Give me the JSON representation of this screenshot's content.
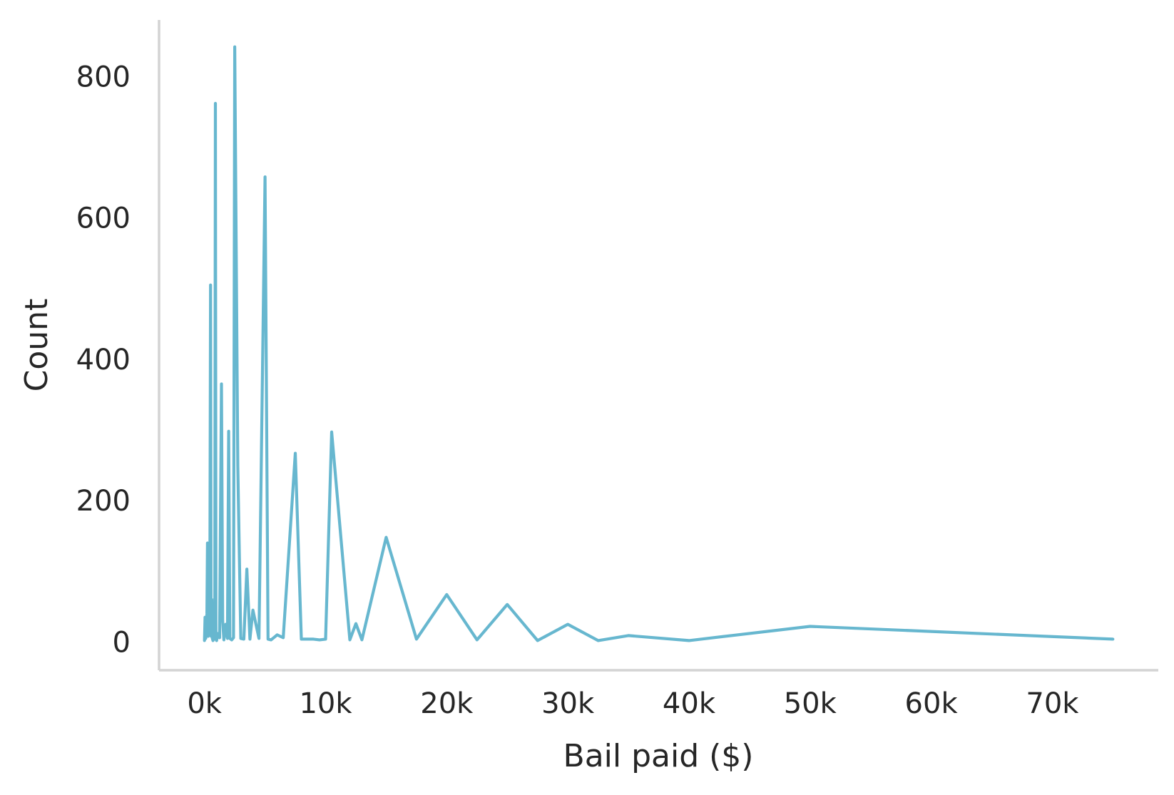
{
  "chart_data": {
    "type": "line",
    "title": "",
    "xlabel": "Bail paid ($)",
    "ylabel": "Count",
    "xlim": [
      -3750,
      78750
    ],
    "ylim": [
      -40,
      880
    ],
    "grid": false,
    "legend": "none",
    "x_ticks": [
      {
        "value": 0,
        "label": "0k"
      },
      {
        "value": 10000,
        "label": "10k"
      },
      {
        "value": 20000,
        "label": "20k"
      },
      {
        "value": 30000,
        "label": "30k"
      },
      {
        "value": 40000,
        "label": "40k"
      },
      {
        "value": 50000,
        "label": "50k"
      },
      {
        "value": 60000,
        "label": "60k"
      },
      {
        "value": 70000,
        "label": "70k"
      }
    ],
    "y_ticks": [
      {
        "value": 0,
        "label": "0"
      },
      {
        "value": 200,
        "label": "200"
      },
      {
        "value": 400,
        "label": "400"
      },
      {
        "value": 600,
        "label": "600"
      },
      {
        "value": 800,
        "label": "800"
      }
    ],
    "series": [
      {
        "color": "#67b7cf",
        "x": [
          0,
          50,
          100,
          150,
          200,
          250,
          300,
          350,
          400,
          450,
          500,
          550,
          600,
          650,
          700,
          750,
          800,
          850,
          900,
          950,
          1000,
          1100,
          1250,
          1400,
          1500,
          1600,
          1750,
          1900,
          2000,
          2100,
          2250,
          2400,
          2500,
          2750,
          3000,
          3250,
          3500,
          3750,
          4000,
          4500,
          5000,
          5250,
          5500,
          6000,
          6500,
          7500,
          8000,
          9000,
          9500,
          10000,
          10500,
          12000,
          12500,
          13000,
          15000,
          17500,
          20000,
          22500,
          25000,
          27500,
          30000,
          32500,
          35000,
          40000,
          50000,
          75000
        ],
        "y": [
          2,
          35,
          5,
          20,
          40,
          140,
          8,
          30,
          10,
          100,
          505,
          8,
          60,
          5,
          2,
          40,
          12,
          4,
          762,
          5,
          2,
          12,
          6,
          365,
          30,
          3,
          25,
          5,
          298,
          5,
          3,
          6,
          842,
          250,
          5,
          4,
          103,
          4,
          45,
          5,
          658,
          4,
          3,
          10,
          6,
          267,
          4,
          4,
          3,
          4,
          297,
          3,
          26,
          3,
          148,
          4,
          67,
          3,
          53,
          2,
          25,
          2,
          9,
          2,
          22,
          4
        ]
      }
    ]
  }
}
